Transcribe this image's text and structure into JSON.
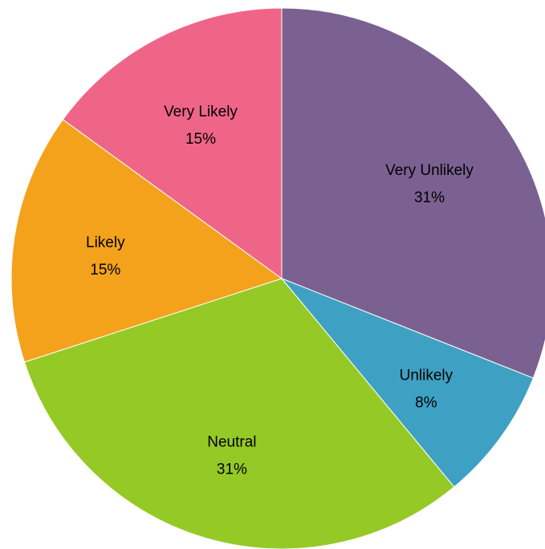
{
  "chart_data": {
    "type": "pie",
    "title": "",
    "slices": [
      {
        "label": "Very Unlikely",
        "percent_label": "31%",
        "value": 31,
        "color": "#7B6191"
      },
      {
        "label": "Unlikely",
        "percent_label": "8%",
        "value": 8,
        "color": "#3EA1C3"
      },
      {
        "label": "Neutral",
        "percent_label": "31%",
        "value": 31,
        "color": "#95C926"
      },
      {
        "label": "Likely",
        "percent_label": "15%",
        "value": 15,
        "color": "#F4A21C"
      },
      {
        "label": "Very Likely",
        "percent_label": "15%",
        "value": 15,
        "color": "#EF6588"
      }
    ],
    "start": "12 o'clock",
    "direction": "clockwise",
    "legend": "none"
  }
}
